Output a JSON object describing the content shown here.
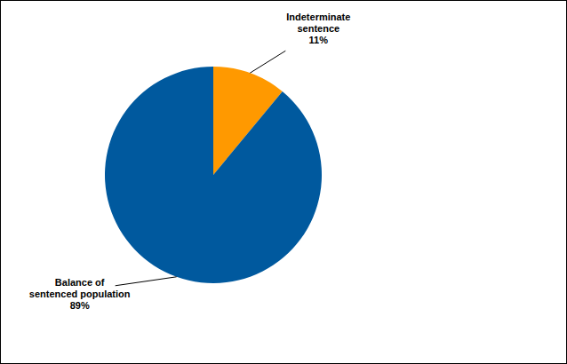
{
  "chart_data": {
    "type": "pie",
    "categories": [
      "Indeterminate\nsentence",
      "Balance of\nsentenced population"
    ],
    "values": [
      11,
      89
    ],
    "value_labels": [
      "11%",
      "89%"
    ],
    "colors": [
      "#ff9900",
      "#00599e"
    ],
    "data_labels": true
  }
}
